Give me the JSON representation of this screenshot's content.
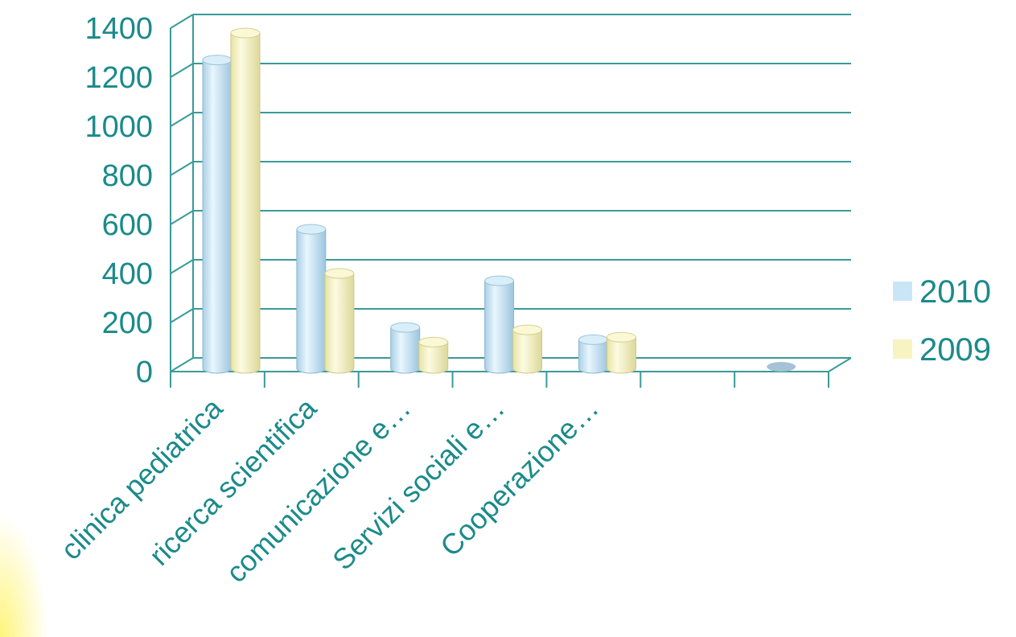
{
  "chart_data": {
    "type": "bar",
    "title": "",
    "xlabel": "",
    "ylabel": "",
    "ylim": [
      0,
      1400
    ],
    "y_ticks": [
      "0",
      "200",
      "400",
      "600",
      "800",
      "1000",
      "1200",
      "1400"
    ],
    "categories": [
      "clinica pediatrica",
      "ricerca scientifica",
      "comunicazione e…",
      "Servizi sociali e…",
      "Cooperazione…",
      "",
      ""
    ],
    "series": [
      {
        "name": "2010",
        "color": "#c9e6f6",
        "values": [
          1270,
          580,
          180,
          370,
          130,
          0,
          0
        ]
      },
      {
        "name": "2009",
        "color": "#f7f4c2",
        "values": [
          1380,
          400,
          120,
          170,
          140,
          0,
          0
        ]
      }
    ],
    "grid": true,
    "legend_position": "right",
    "style": "3d-cylinder"
  }
}
